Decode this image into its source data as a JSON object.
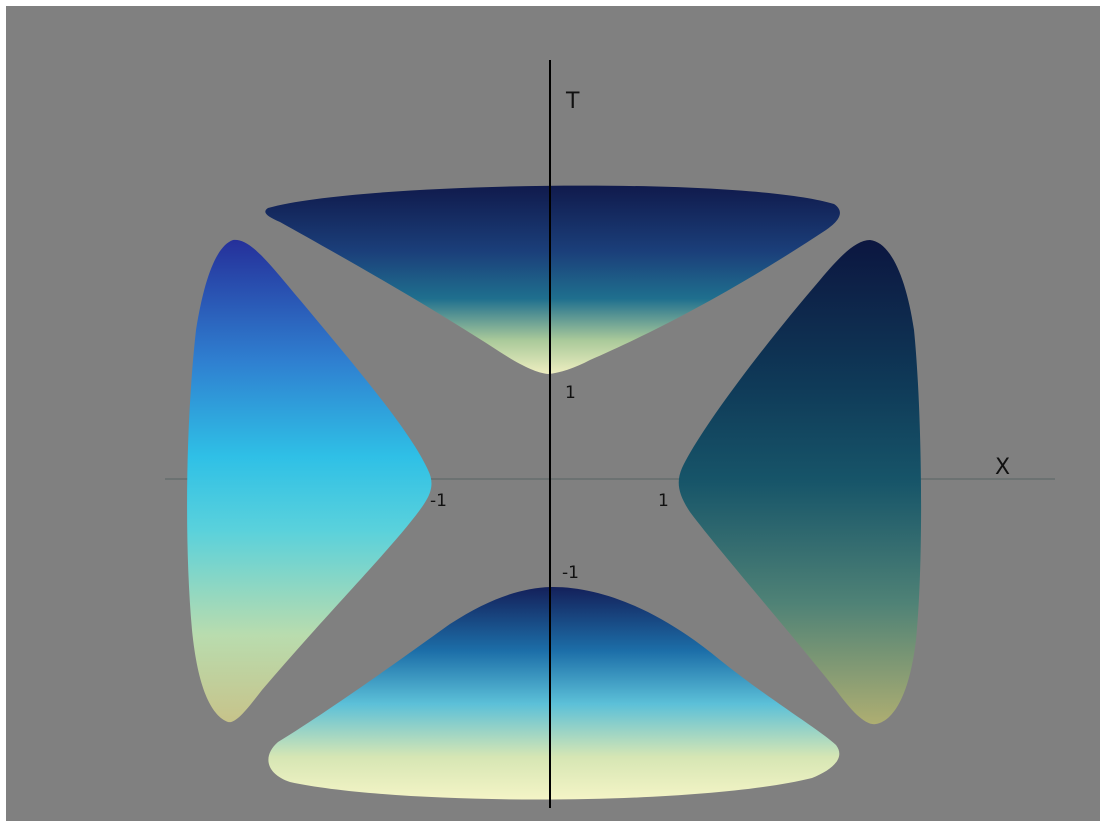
{
  "diagram": {
    "axes": {
      "vertical_label": "T",
      "horizontal_label": "X"
    },
    "ticks": {
      "t_positive": "1",
      "t_negative": "-1",
      "x_negative": "-1",
      "x_positive": "1"
    },
    "colors": {
      "background": "#808080",
      "axis": "#000000",
      "gradient_dark": "#0f1b4e",
      "gradient_mid": "#2ab0dc",
      "gradient_light": "#f3f4c2"
    }
  }
}
